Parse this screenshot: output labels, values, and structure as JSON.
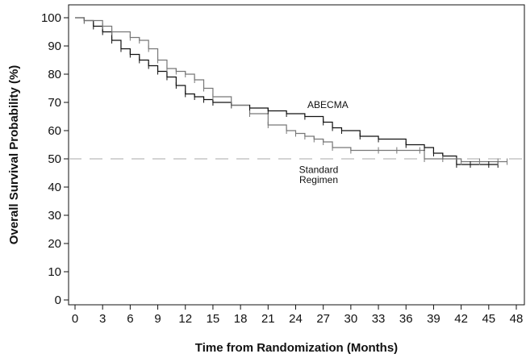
{
  "chart_data": {
    "type": "line",
    "xlabel": "Time from Randomization (Months)",
    "ylabel": "Overall Survival Probability (%)",
    "xlim": [
      0,
      48
    ],
    "ylim": [
      0,
      100
    ],
    "xticks": [
      0,
      3,
      6,
      9,
      12,
      15,
      18,
      21,
      24,
      27,
      30,
      33,
      36,
      39,
      42,
      45,
      48
    ],
    "yticks": [
      0,
      10,
      20,
      30,
      40,
      50,
      60,
      70,
      80,
      90,
      100
    ],
    "reference_line": {
      "y": 50,
      "style": "dashed",
      "color": "#aaaaaa"
    },
    "grid": false,
    "series": [
      {
        "name": "ABECMA",
        "color": "#111111",
        "x": [
          0,
          1,
          2,
          3,
          4,
          5,
          6,
          7,
          8,
          9,
          10,
          11,
          12,
          13,
          14,
          15,
          17,
          19,
          21,
          23,
          25,
          27,
          28,
          29,
          31,
          33,
          36,
          38,
          39,
          40,
          41.5,
          43,
          45,
          46
        ],
        "y": [
          100,
          99,
          97,
          95,
          92,
          89,
          87,
          85,
          83,
          81,
          79,
          76,
          73,
          72,
          71,
          70,
          69,
          68,
          67,
          66,
          65,
          63,
          61,
          60,
          58,
          57,
          55,
          54,
          52,
          51,
          48,
          48,
          48,
          48
        ]
      },
      {
        "name": "Standard Regimen",
        "color": "#777777",
        "x": [
          0,
          1,
          3,
          4,
          6,
          7,
          8,
          9,
          10,
          11,
          12,
          13,
          14,
          15,
          17,
          19,
          21,
          23,
          24,
          25,
          26,
          27,
          28,
          30,
          33,
          35,
          37.5,
          38,
          40,
          42,
          44,
          46,
          47
        ],
        "y": [
          100,
          99,
          97,
          95,
          93,
          92,
          89,
          85,
          82,
          81,
          80,
          78,
          75,
          72,
          69,
          66,
          62,
          60,
          59,
          58,
          57,
          56,
          54,
          53,
          53,
          53,
          53,
          50,
          50,
          49,
          49,
          49,
          49
        ]
      }
    ],
    "annotations": [
      {
        "text": "ABECMA",
        "x": 27.5,
        "y": 68
      },
      {
        "text": "Standard",
        "x": 26.5,
        "y": 45
      },
      {
        "text": "Regimen",
        "x": 26.5,
        "y": 41.5
      }
    ]
  }
}
